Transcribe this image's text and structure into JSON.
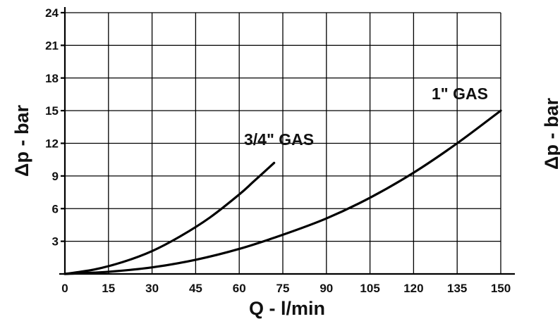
{
  "chart_data": {
    "type": "line",
    "xlabel": "Q - l/min",
    "ylabel": "Δp - bar",
    "xlim": [
      0,
      150
    ],
    "ylim": [
      0,
      24
    ],
    "x_ticks": [
      "0",
      "15",
      "30",
      "45",
      "60",
      "75",
      "90",
      "105",
      "120",
      "135",
      "150"
    ],
    "y_ticks": [
      "3",
      "6",
      "9",
      "12",
      "15",
      "18",
      "21",
      "24"
    ],
    "grid": true,
    "series": [
      {
        "name": "3/4\" GAS",
        "x": [
          0,
          10,
          20,
          30,
          40,
          50,
          60,
          65,
          72
        ],
        "y": [
          0,
          0.4,
          1.1,
          2.1,
          3.5,
          5.2,
          7.3,
          8.5,
          10.2
        ]
      },
      {
        "name": "1\" GAS",
        "x": [
          0,
          15,
          30,
          45,
          60,
          75,
          90,
          105,
          120,
          135,
          150
        ],
        "y": [
          0,
          0.2,
          0.6,
          1.3,
          2.3,
          3.6,
          5.1,
          7.0,
          9.3,
          12.0,
          15.0
        ]
      }
    ]
  },
  "right_fragment": {
    "ylabel": "Δp - bar"
  }
}
